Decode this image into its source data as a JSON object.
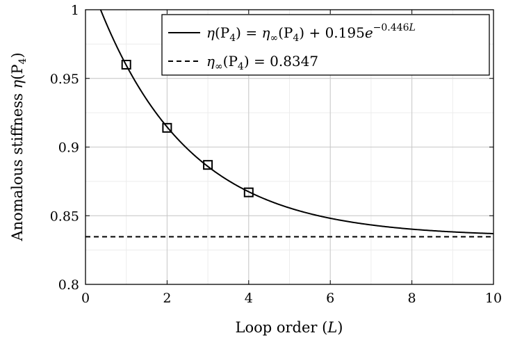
{
  "chart_data": {
    "type": "line",
    "xlabel": "Loop order (L)",
    "ylabel": "Anomalous stiffness η(P₄)",
    "xlim": [
      0,
      10
    ],
    "ylim": [
      0.8,
      1.0
    ],
    "x_ticks": [
      0,
      2,
      4,
      6,
      8,
      10
    ],
    "x_tick_labels": [
      "0",
      "2",
      "4",
      "6",
      "8",
      "10"
    ],
    "y_ticks": [
      0.8,
      0.85,
      0.9,
      0.95,
      1.0
    ],
    "y_tick_labels": [
      "0.8",
      "0.85",
      "0.9",
      "0.95",
      "1"
    ],
    "grid": true,
    "legend_position": "top-right",
    "series": [
      {
        "name": "η(P₄) = η∞(P₄) + 0.195e^(−0.446L)",
        "kind": "fit-curve",
        "style": "solid",
        "color": "#000000",
        "formula": {
          "a": 0.8347,
          "b": 0.195,
          "c": -0.446
        }
      },
      {
        "name": "η∞(P₄) = 0.8347",
        "kind": "constant",
        "style": "dashed",
        "color": "#000000",
        "value": 0.8347
      },
      {
        "kind": "markers",
        "marker": "square",
        "color": "#000000",
        "x": [
          1,
          2,
          3,
          4
        ],
        "y": [
          0.96,
          0.914,
          0.887,
          0.867
        ]
      }
    ]
  }
}
